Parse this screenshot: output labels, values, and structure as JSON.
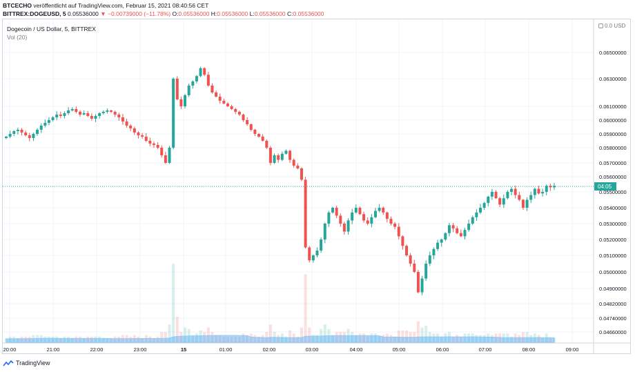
{
  "header": {
    "publisher": "BTCECHO",
    "published_text": "veröffentlicht auf TradingView.com, Februar 15, 2021 08:40:56 CET",
    "symbol": "BITTREX:DOGEUSD, 5",
    "last": "0.05536000",
    "change": "▼ −0.00739000 (−11.78%)",
    "o_label": "O:",
    "o": "0.05536000",
    "h_label": "H:",
    "h": "0.05536000",
    "l_label": "L:",
    "l": "0.05536000",
    "c_label": "C:",
    "c": "0.05536000"
  },
  "legend": {
    "title": "Dogecoin / US Dollar, 5, BITTREX",
    "volume": "Vol (20)"
  },
  "price_axis": {
    "unit_label": "0.0 USD",
    "current_price_label": "04:05"
  },
  "branding": "TradingView",
  "colors": {
    "up": "#26a69a",
    "down": "#ef5350",
    "vol_ma": "#90caf9"
  },
  "chart_data": {
    "type": "candlestick",
    "title": "Dogecoin / US Dollar, 5, BITTREX",
    "x_tick_labels": [
      "20:00",
      "21:00",
      "22:00",
      "23:00",
      "15",
      "01:00",
      "02:00",
      "03:00",
      "04:00",
      "05:00",
      "06:00",
      "07:00",
      "08:00",
      "09:00"
    ],
    "y_tick_labels": [
      "0.06500000",
      "0.06300000",
      "0.06100000",
      "0.06000000",
      "0.05900000",
      "0.05800000",
      "0.05700000",
      "0.05600000",
      "0.05500000",
      "0.05400000",
      "0.05300000",
      "0.05200000",
      "0.05100000",
      "0.05000000",
      "0.04900000",
      "0.04820000",
      "0.04740000",
      "0.04660000"
    ],
    "y_tick_values": [
      0.065,
      0.063,
      0.061,
      0.06,
      0.059,
      0.058,
      0.057,
      0.056,
      0.055,
      0.054,
      0.053,
      0.052,
      0.051,
      0.05,
      0.049,
      0.0482,
      0.0474,
      0.0466
    ],
    "current_price": 0.05536,
    "candles_close": [
      0.0588,
      0.059,
      0.0592,
      0.0593,
      0.0591,
      0.0589,
      0.0587,
      0.059,
      0.0593,
      0.0596,
      0.0598,
      0.06,
      0.0602,
      0.0604,
      0.0603,
      0.0605,
      0.0607,
      0.0608,
      0.0606,
      0.0604,
      0.0605,
      0.0603,
      0.0601,
      0.0603,
      0.0605,
      0.0606,
      0.0607,
      0.0606,
      0.0604,
      0.0602,
      0.0599,
      0.0596,
      0.0594,
      0.0591,
      0.0589,
      0.0588,
      0.0585,
      0.0583,
      0.0582,
      0.058,
      0.0575,
      0.057,
      0.058,
      0.063,
      0.0615,
      0.061,
      0.0618,
      0.0625,
      0.0628,
      0.0632,
      0.0638,
      0.0633,
      0.0625,
      0.062,
      0.0617,
      0.0614,
      0.0612,
      0.061,
      0.0608,
      0.0606,
      0.0604,
      0.06,
      0.0597,
      0.0593,
      0.059,
      0.0588,
      0.0585,
      0.058,
      0.057,
      0.0575,
      0.0572,
      0.0576,
      0.0578,
      0.0572,
      0.0568,
      0.0566,
      0.0558,
      0.0515,
      0.0507,
      0.051,
      0.0513,
      0.052,
      0.053,
      0.0537,
      0.054,
      0.0535,
      0.053,
      0.0525,
      0.0532,
      0.0537,
      0.054,
      0.0536,
      0.0532,
      0.053,
      0.0534,
      0.0538,
      0.054,
      0.0537,
      0.0533,
      0.053,
      0.0528,
      0.0522,
      0.0516,
      0.051,
      0.0505,
      0.05,
      0.0488,
      0.0496,
      0.0505,
      0.051,
      0.0514,
      0.0518,
      0.052,
      0.0524,
      0.0529,
      0.0527,
      0.0524,
      0.0522,
      0.0526,
      0.053,
      0.0534,
      0.0537,
      0.054,
      0.0543,
      0.0547,
      0.055,
      0.0546,
      0.0542,
      0.0546,
      0.055,
      0.0552,
      0.0548,
      0.0545,
      0.054,
      0.0545,
      0.0548,
      0.0552,
      0.0549,
      0.055,
      0.0554,
      0.0553,
      0.0554
    ],
    "volume_note": "Volume histogram with 20-period moving average"
  }
}
